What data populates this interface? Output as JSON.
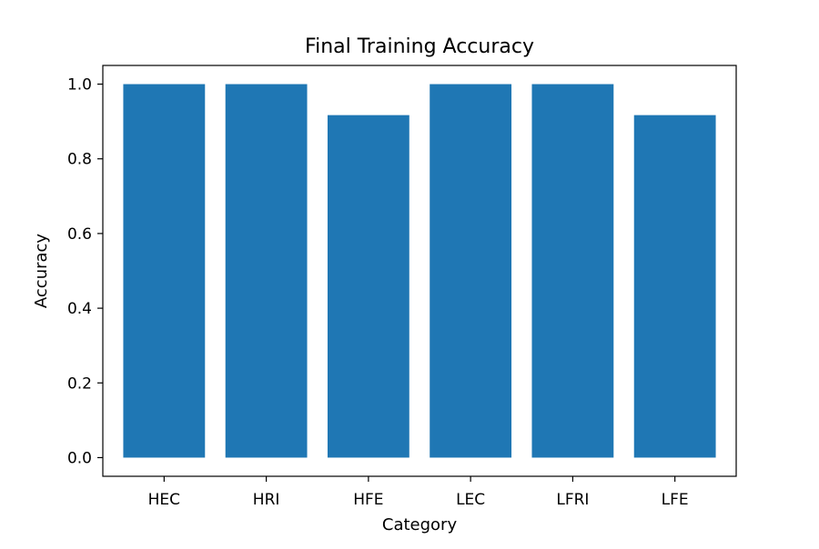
{
  "chart_data": {
    "type": "bar",
    "title": "Final Training Accuracy",
    "xlabel": "Category",
    "ylabel": "Accuracy",
    "categories": [
      "HEC",
      "HRI",
      "HFE",
      "LEC",
      "LFRI",
      "LFE"
    ],
    "values": [
      1.0,
      1.0,
      0.917,
      1.0,
      1.0,
      0.917
    ],
    "ylim": [
      -0.05,
      1.05
    ],
    "yticks": [
      0.0,
      0.2,
      0.4,
      0.6,
      0.8,
      1.0
    ],
    "ytick_labels": [
      "0.0",
      "0.2",
      "0.4",
      "0.6",
      "0.8",
      "1.0"
    ],
    "bar_color": "#1f77b4",
    "grid": false,
    "legend": "none"
  }
}
